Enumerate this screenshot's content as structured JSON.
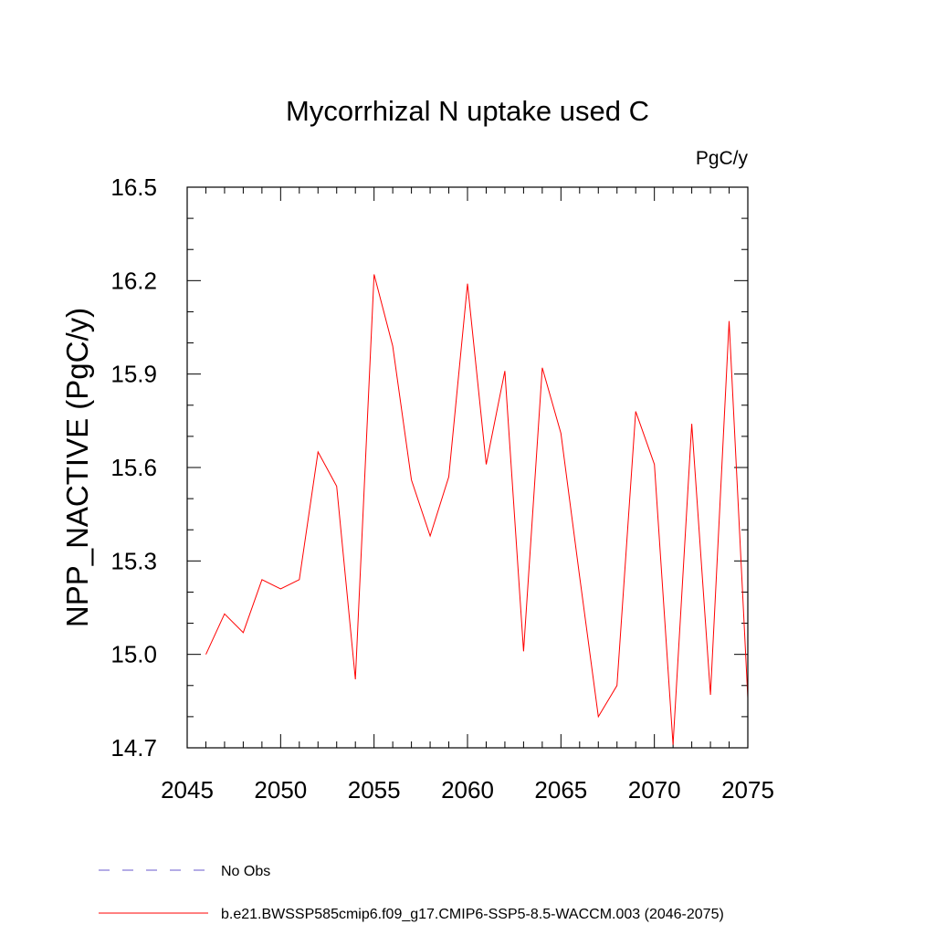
{
  "chart_data": {
    "type": "line",
    "title": "Mycorrhizal N uptake used C",
    "units_label": "PgC/y",
    "xlabel": "",
    "ylabel": "NPP_NACTIVE  (PgC/y)",
    "xlim": [
      2045,
      2075
    ],
    "ylim": [
      14.7,
      16.5
    ],
    "xticks": [
      2045,
      2050,
      2055,
      2060,
      2065,
      2070,
      2075
    ],
    "yticks": [
      14.7,
      15.0,
      15.3,
      15.6,
      15.9,
      16.2,
      16.5
    ],
    "ytick_labels": [
      "14.7",
      "15.0",
      "15.3",
      "15.6",
      "15.9",
      "16.2",
      "16.5"
    ],
    "grid": false,
    "legend_position": "bottom",
    "series": [
      {
        "name": "b.e21.BWSSP585cmip6.f09_g17.CMIP6-SSP5-8.5-WACCM.003 (2046-2075)",
        "color": "#ff0000",
        "x": [
          2046,
          2047,
          2048,
          2049,
          2050,
          2051,
          2052,
          2053,
          2054,
          2055,
          2056,
          2057,
          2058,
          2059,
          2060,
          2061,
          2062,
          2063,
          2064,
          2065,
          2066,
          2067,
          2068,
          2069,
          2070,
          2071,
          2072,
          2073,
          2074,
          2075
        ],
        "y": [
          15.0,
          15.13,
          15.07,
          15.24,
          15.21,
          15.24,
          15.65,
          15.54,
          14.92,
          16.22,
          15.99,
          15.56,
          15.38,
          15.57,
          16.19,
          15.61,
          15.91,
          15.01,
          15.92,
          15.71,
          15.25,
          14.8,
          14.9,
          15.78,
          15.61,
          14.71,
          15.74,
          14.87,
          16.07,
          14.86
        ]
      }
    ],
    "legend": [
      {
        "label": "No Obs",
        "color": "#6a5acd",
        "style": "dashed"
      },
      {
        "label": "b.e21.BWSSP585cmip6.f09_g17.CMIP6-SSP5-8.5-WACCM.003 (2046-2075)",
        "color": "#ff0000",
        "style": "solid"
      }
    ]
  }
}
